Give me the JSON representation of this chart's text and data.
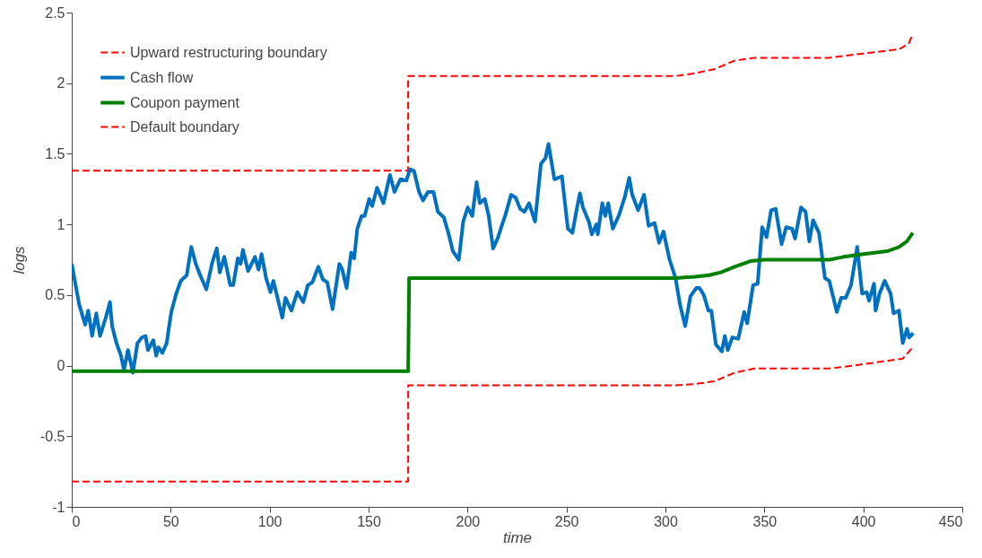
{
  "chart_data": {
    "type": "line",
    "xlabel": "time",
    "ylabel": "logs",
    "xlim": [
      0,
      450
    ],
    "ylim": [
      -1,
      2.5
    ],
    "xticks": [
      0,
      50,
      100,
      150,
      200,
      250,
      300,
      350,
      400,
      450
    ],
    "yticks": [
      -1,
      -0.5,
      0,
      0.5,
      1,
      1.5,
      2,
      2.5
    ],
    "legend": "top left",
    "series": [
      {
        "name": "Upward restructuring boundary",
        "color": "#ff0000",
        "line_style": "dashed",
        "x": [
          0,
          170,
          170,
          305,
          315,
          325,
          335,
          345,
          383,
          400,
          418,
          423,
          425
        ],
        "values": [
          1.38,
          1.38,
          2.05,
          2.05,
          2.07,
          2.1,
          2.16,
          2.18,
          2.18,
          2.21,
          2.24,
          2.28,
          2.35
        ]
      },
      {
        "name": "Cash flow",
        "color": "#0070c0",
        "line_style": "solid",
        "x": [
          0,
          3.8,
          6.8,
          8.3,
          10.3,
          12.4,
          14.3,
          17.4,
          19.3,
          20.4,
          22.6,
          24.9,
          26.4,
          28.4,
          30.9,
          33.2,
          35.5,
          37.3,
          38.5,
          41.2,
          42.7,
          43.8,
          45.8,
          48,
          49,
          50.3,
          52.8,
          55.1,
          58.1,
          60.4,
          62.7,
          64.9,
          68,
          71,
          73.3,
          74.8,
          77.1,
          80.1,
          81.6,
          83.9,
          85.3,
          86.5,
          89.1,
          92.6,
          94.4,
          95.9,
          98.2,
          100.4,
          101.9,
          106.4,
          108,
          111,
          114,
          117,
          119.3,
          121.6,
          124.6,
          126.9,
          129.1,
          131.8,
          135.2,
          136.7,
          138.9,
          141.2,
          142.7,
          144.3,
          146.5,
          148,
          150.3,
          151.8,
          154.3,
          157.5,
          160.8,
          163.1,
          166.1,
          169.1,
          170.9,
          172.9,
          175.5,
          177.5,
          180,
          182.8,
          185,
          188,
          190.3,
          192.6,
          195.6,
          197.8,
          200.1,
          202.4,
          204.6,
          206.2,
          208.7,
          210.7,
          212.9,
          215.2,
          217.5,
          219,
          222,
          224.3,
          226.6,
          228.8,
          231.1,
          234.1,
          237.1,
          239.4,
          240.9,
          243.9,
          247.7,
          250.7,
          253,
          255.2,
          256.8,
          258.3,
          261.3,
          262.8,
          265.1,
          265.8,
          268.1,
          269.6,
          271.1,
          273.4,
          276.4,
          279.4,
          281.7,
          283.2,
          286.2,
          289.2,
          291.5,
          294.5,
          296.8,
          299,
          302.1,
          305.1,
          307.4,
          310,
          312.6,
          315.6,
          317.2,
          319.4,
          321.7,
          323.2,
          325.5,
          328.5,
          330,
          331.5,
          333.8,
          336.8,
          339.8,
          341.3,
          344.3,
          346.6,
          348.9,
          351.1,
          353.4,
          355.7,
          358.7,
          361,
          364,
          365.5,
          368.5,
          370.8,
          372.7,
          374.6,
          377.6,
          380.6,
          382.8,
          386.6,
          388.8,
          391.1,
          393.8,
          396.9,
          399.4,
          401.7,
          402.9,
          405.4,
          406.2,
          408.2,
          410.8,
          413.8,
          415.3,
          418,
          419.9,
          422.1,
          423.2,
          425.2
        ],
        "values": [
          0.72,
          0.43,
          0.29,
          0.39,
          0.21,
          0.37,
          0.21,
          0.35,
          0.45,
          0.28,
          0.16,
          0.07,
          -0.03,
          0.11,
          -0.05,
          0.16,
          0.2,
          0.21,
          0.11,
          0.18,
          0.07,
          0.13,
          0.09,
          0.16,
          0.26,
          0.38,
          0.51,
          0.6,
          0.64,
          0.84,
          0.72,
          0.64,
          0.54,
          0.73,
          0.83,
          0.66,
          0.77,
          0.57,
          0.57,
          0.76,
          0.72,
          0.82,
          0.67,
          0.77,
          0.68,
          0.79,
          0.62,
          0.52,
          0.6,
          0.34,
          0.48,
          0.39,
          0.52,
          0.45,
          0.57,
          0.59,
          0.7,
          0.61,
          0.59,
          0.4,
          0.72,
          0.68,
          0.55,
          0.8,
          0.76,
          0.97,
          1.06,
          1.06,
          1.18,
          1.13,
          1.26,
          1.15,
          1.35,
          1.23,
          1.32,
          1.31,
          1.39,
          1.38,
          1.23,
          1.17,
          1.23,
          1.23,
          1.09,
          1.05,
          0.94,
          0.81,
          0.75,
          1.02,
          1.12,
          1.06,
          1.3,
          1.15,
          1.18,
          1.06,
          0.83,
          0.9,
          1,
          1.06,
          1.21,
          1.19,
          1.11,
          1.09,
          1.15,
          1.02,
          1.43,
          1.47,
          1.57,
          1.32,
          1.34,
          0.97,
          0.94,
          1.11,
          1.22,
          1.12,
          1.02,
          0.93,
          1,
          0.93,
          1.15,
          1.06,
          1.15,
          0.97,
          1.06,
          1.19,
          1.33,
          1.21,
          1.1,
          1.21,
          0.99,
          1.01,
          0.87,
          0.95,
          0.75,
          0.62,
          0.43,
          0.28,
          0.49,
          0.55,
          0.55,
          0.5,
          0.39,
          0.39,
          0.15,
          0.1,
          0.21,
          0.11,
          0.2,
          0.19,
          0.38,
          0.3,
          0.57,
          0.58,
          0.98,
          0.91,
          1.1,
          1.11,
          0.86,
          0.98,
          0.97,
          0.9,
          1.12,
          1.09,
          0.88,
          1.03,
          0.94,
          0.62,
          0.6,
          0.38,
          0.48,
          0.48,
          0.57,
          0.84,
          0.51,
          0.52,
          0.46,
          0.58,
          0.39,
          0.51,
          0.6,
          0.51,
          0.37,
          0.39,
          0.16,
          0.26,
          0.2,
          0.23
        ]
      },
      {
        "name": "Coupon payment",
        "color": "#008000",
        "line_style": "solid",
        "x": [
          0,
          170,
          170.5,
          305,
          315,
          322,
          328,
          335,
          343,
          350,
          383,
          390,
          400,
          412,
          418,
          422,
          425
        ],
        "values": [
          -0.04,
          -0.04,
          0.62,
          0.62,
          0.63,
          0.64,
          0.66,
          0.7,
          0.74,
          0.75,
          0.75,
          0.77,
          0.79,
          0.81,
          0.84,
          0.88,
          0.94
        ]
      },
      {
        "name": "Default boundary",
        "color": "#ff0000",
        "line_style": "dashed",
        "x": [
          0,
          170,
          170,
          305,
          315,
          325,
          335,
          345,
          383,
          395,
          410,
          420,
          425
        ],
        "values": [
          -0.82,
          -0.82,
          -0.14,
          -0.14,
          -0.13,
          -0.11,
          -0.05,
          -0.02,
          -0.02,
          0,
          0.03,
          0.05,
          0.13
        ]
      }
    ]
  }
}
